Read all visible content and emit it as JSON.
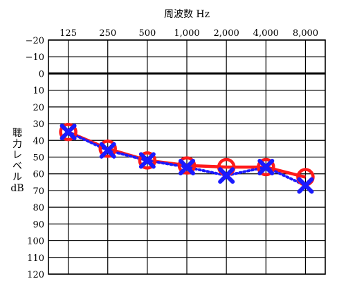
{
  "chart_data": {
    "type": "line",
    "title": "",
    "xlabel": "周波数 Hz",
    "ylabel": [
      "聴",
      "力",
      "レ",
      "ベ",
      "ル",
      "dB"
    ],
    "categories": [
      "125",
      "250",
      "500",
      "1,000",
      "2,000",
      "4,000",
      "8,000"
    ],
    "y_ticks": [
      "−20",
      "−10",
      "0",
      "10",
      "20",
      "30",
      "40",
      "50",
      "60",
      "70",
      "80",
      "90",
      "100",
      "110",
      "120"
    ],
    "ylim": [
      -20,
      120
    ],
    "y_direction": "down",
    "reference_line_value": 0,
    "grid": true,
    "series": [
      {
        "marker": "circle",
        "line_style": "solid",
        "color": "#ff1a1a",
        "values": [
          35,
          45,
          52,
          55,
          56,
          56,
          62
        ]
      },
      {
        "marker": "x",
        "line_style": "dotted",
        "color": "#1a1aff",
        "values": [
          35,
          46,
          52,
          56,
          61,
          56,
          67
        ]
      }
    ]
  }
}
